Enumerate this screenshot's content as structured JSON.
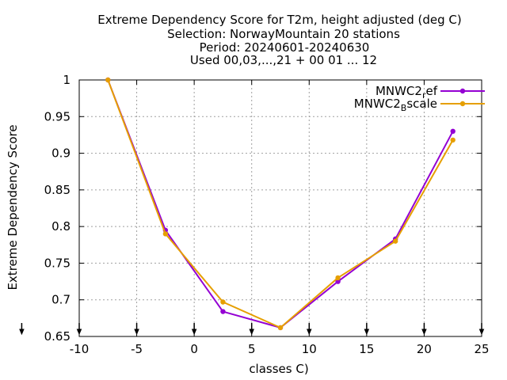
{
  "chart_data": {
    "type": "line",
    "title_lines": [
      "Extreme Dependency Score  for T2m, height adjusted (deg C)",
      "Selection: NorwayMountain     20 stations",
      "Period: 20240601-20240630",
      "Used 00,03,...,21 + 00 01 ... 12"
    ],
    "xlabel": "classes C)",
    "ylabel": "Extreme Dependency Score",
    "xlim": [
      -10,
      25
    ],
    "ylim": [
      0.65,
      1
    ],
    "xticks": [
      -10,
      -5,
      0,
      5,
      10,
      15,
      20,
      25
    ],
    "xtick_labels": [
      "-10",
      "-5",
      "0",
      "5",
      "10",
      "15",
      "20",
      "25"
    ],
    "yticks": [
      0.65,
      0.7,
      0.75,
      0.8,
      0.85,
      0.9,
      0.95,
      1
    ],
    "ytick_labels": [
      "0.65",
      "0.7",
      "0.75",
      "0.8",
      "0.85",
      "0.9",
      "0.95",
      "1"
    ],
    "grid": true,
    "legend_position": "top-right",
    "bottom_arrow_x": [
      -15,
      -10,
      -5,
      0,
      5,
      10,
      15,
      20,
      25
    ],
    "series": [
      {
        "legend_base": "MNWC2",
        "legend_sub": "r",
        "legend_rest": "ef",
        "color": "#9400d3",
        "x": [
          -7.5,
          -2.5,
          2.5,
          7.5,
          12.5,
          17.5,
          22.5
        ],
        "y": [
          1.0,
          0.795,
          0.684,
          0.662,
          0.725,
          0.783,
          0.93
        ]
      },
      {
        "legend_base": "MNWC2",
        "legend_sub": "B",
        "legend_rest": "scale",
        "color": "#e69f00",
        "x": [
          -7.5,
          -2.5,
          2.5,
          7.5,
          12.5,
          17.5,
          22.5
        ],
        "y": [
          1.0,
          0.79,
          0.697,
          0.662,
          0.73,
          0.78,
          0.918
        ]
      }
    ]
  }
}
